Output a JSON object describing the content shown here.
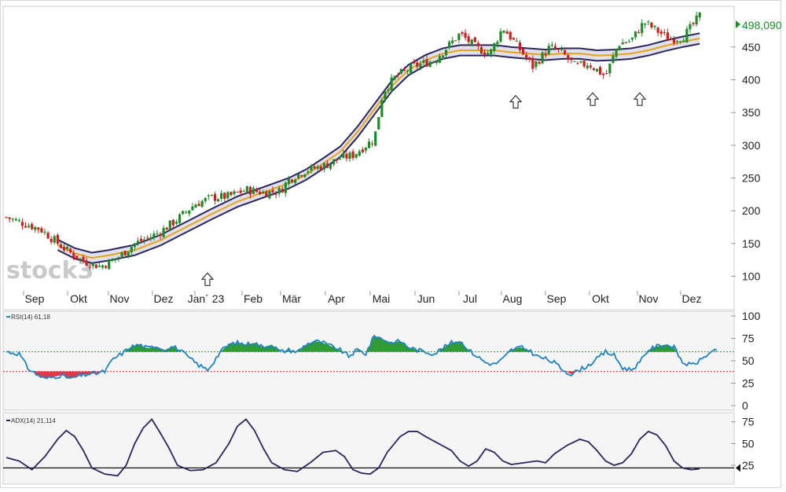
{
  "watermark": "stock3",
  "chart_data": [
    {
      "type": "candlestick",
      "x_labels": [
        "Sep",
        "Okt",
        "Nov",
        "Dez",
        "Jan´ 23",
        "Feb",
        "Mär",
        "Apr",
        "Mai",
        "Jun",
        "Jul",
        "Aug",
        "Sep",
        "Okt",
        "Nov",
        "Dez"
      ],
      "y_ticks": [
        100,
        150,
        200,
        250,
        300,
        350,
        400,
        450
      ],
      "ylim": [
        85,
        505
      ],
      "last_price": "498,090",
      "colors": {
        "up": "#1e8a2a",
        "down": "#cc2020",
        "band_line": "#2a2660",
        "mid_line": "#e8a21a",
        "band_fill": "#dcdce8",
        "last_price": "#1e8a2a"
      },
      "arrow_markers": [
        "Jan´ 23",
        "Aug",
        "Okt",
        "Nov"
      ],
      "close_path": [
        [
          0,
          190
        ],
        [
          8,
          172
        ],
        [
          14,
          140
        ],
        [
          18,
          123
        ],
        [
          22,
          115
        ],
        [
          26,
          128
        ],
        [
          30,
          150
        ],
        [
          33,
          158
        ],
        [
          36,
          168
        ],
        [
          40,
          187
        ],
        [
          44,
          210
        ],
        [
          48,
          220
        ],
        [
          52,
          222
        ],
        [
          56,
          232
        ],
        [
          60,
          228
        ],
        [
          64,
          230
        ],
        [
          66,
          248
        ],
        [
          70,
          262
        ],
        [
          74,
          268
        ],
        [
          78,
          280
        ],
        [
          81,
          285
        ],
        [
          84,
          300
        ],
        [
          86,
          310
        ],
        [
          88,
          382
        ],
        [
          91,
          405
        ],
        [
          95,
          420
        ],
        [
          100,
          430
        ],
        [
          103,
          450
        ],
        [
          106,
          470
        ],
        [
          110,
          448
        ],
        [
          113,
          440
        ],
        [
          116,
          480
        ],
        [
          119,
          455
        ],
        [
          123,
          420
        ],
        [
          127,
          450
        ],
        [
          130,
          440
        ],
        [
          133,
          420
        ],
        [
          136,
          425
        ],
        [
          140,
          405
        ],
        [
          143,
          455
        ],
        [
          146,
          460
        ],
        [
          149,
          488
        ],
        [
          152,
          475
        ],
        [
          155,
          462
        ],
        [
          158,
          465
        ],
        [
          160,
          480
        ],
        [
          162,
          498
        ]
      ],
      "band_path": [
        [
          12,
          148
        ],
        [
          16,
          135
        ],
        [
          20,
          128
        ],
        [
          24,
          132
        ],
        [
          30,
          140
        ],
        [
          36,
          155
        ],
        [
          42,
          175
        ],
        [
          48,
          195
        ],
        [
          54,
          214
        ],
        [
          60,
          228
        ],
        [
          66,
          242
        ],
        [
          70,
          255
        ],
        [
          74,
          272
        ],
        [
          78,
          290
        ],
        [
          82,
          320
        ],
        [
          86,
          355
        ],
        [
          90,
          390
        ],
        [
          94,
          415
        ],
        [
          98,
          430
        ],
        [
          102,
          440
        ],
        [
          106,
          445
        ],
        [
          110,
          445
        ],
        [
          114,
          445
        ],
        [
          118,
          442
        ],
        [
          122,
          440
        ],
        [
          126,
          438
        ],
        [
          130,
          440
        ],
        [
          134,
          440
        ],
        [
          138,
          437
        ],
        [
          142,
          438
        ],
        [
          146,
          440
        ],
        [
          150,
          445
        ],
        [
          154,
          452
        ],
        [
          158,
          458
        ],
        [
          162,
          463
        ]
      ],
      "band_half_width": 8
    },
    {
      "type": "line",
      "indicator": "RSI",
      "label": "RSI(14)  61,18",
      "y_ticks": [
        0,
        25,
        50,
        75,
        100
      ],
      "ylim": [
        0,
        100
      ],
      "upper_threshold": 60,
      "lower_threshold": 38,
      "colors": {
        "line": "#1f83c4",
        "over": "#2e9b33",
        "under": "#e03a4a",
        "upper_line": "#2e9b33",
        "lower_line": "#cc3333"
      },
      "values": [
        [
          0,
          60
        ],
        [
          3,
          58
        ],
        [
          5,
          42
        ],
        [
          7,
          35
        ],
        [
          9,
          30
        ],
        [
          11,
          32
        ],
        [
          13,
          34
        ],
        [
          15,
          30
        ],
        [
          17,
          33
        ],
        [
          19,
          35
        ],
        [
          21,
          36
        ],
        [
          23,
          38
        ],
        [
          25,
          52
        ],
        [
          27,
          58
        ],
        [
          29,
          65
        ],
        [
          31,
          68
        ],
        [
          33,
          64
        ],
        [
          35,
          66
        ],
        [
          37,
          62
        ],
        [
          39,
          66
        ],
        [
          41,
          60
        ],
        [
          43,
          52
        ],
        [
          45,
          45
        ],
        [
          47,
          40
        ],
        [
          48,
          46
        ],
        [
          50,
          60
        ],
        [
          52,
          68
        ],
        [
          54,
          70
        ],
        [
          56,
          68
        ],
        [
          58,
          70
        ],
        [
          60,
          65
        ],
        [
          62,
          68
        ],
        [
          64,
          60
        ],
        [
          66,
          62
        ],
        [
          68,
          60
        ],
        [
          70,
          68
        ],
        [
          72,
          72
        ],
        [
          74,
          70
        ],
        [
          76,
          66
        ],
        [
          78,
          62
        ],
        [
          80,
          55
        ],
        [
          82,
          62
        ],
        [
          84,
          58
        ],
        [
          86,
          78
        ],
        [
          88,
          74
        ],
        [
          90,
          70
        ],
        [
          92,
          72
        ],
        [
          94,
          65
        ],
        [
          96,
          62
        ],
        [
          98,
          60
        ],
        [
          100,
          58
        ],
        [
          102,
          64
        ],
        [
          104,
          70
        ],
        [
          106,
          72
        ],
        [
          108,
          62
        ],
        [
          110,
          55
        ],
        [
          112,
          48
        ],
        [
          114,
          46
        ],
        [
          116,
          52
        ],
        [
          118,
          62
        ],
        [
          120,
          65
        ],
        [
          122,
          62
        ],
        [
          124,
          55
        ],
        [
          126,
          52
        ],
        [
          128,
          48
        ],
        [
          130,
          40
        ],
        [
          132,
          35
        ],
        [
          134,
          40
        ],
        [
          136,
          45
        ],
        [
          138,
          52
        ],
        [
          140,
          60
        ],
        [
          142,
          56
        ],
        [
          144,
          42
        ],
        [
          146,
          40
        ],
        [
          148,
          48
        ],
        [
          150,
          62
        ],
        [
          152,
          66
        ],
        [
          154,
          68
        ],
        [
          156,
          65
        ],
        [
          158,
          48
        ],
        [
          160,
          45
        ],
        [
          162,
          50
        ],
        [
          164,
          58
        ],
        [
          166,
          61
        ]
      ]
    },
    {
      "type": "line",
      "indicator": "ADX",
      "label": "ADX(14)  21,114",
      "y_ticks": [
        25,
        50,
        75
      ],
      "ylim": [
        7,
        82
      ],
      "reference_line": 22,
      "colors": {
        "line": "#2a2660",
        "reference": "#111111"
      },
      "values": [
        [
          0,
          34
        ],
        [
          3,
          30
        ],
        [
          6,
          20
        ],
        [
          9,
          35
        ],
        [
          12,
          55
        ],
        [
          14,
          65
        ],
        [
          16,
          58
        ],
        [
          18,
          42
        ],
        [
          20,
          22
        ],
        [
          23,
          15
        ],
        [
          26,
          13
        ],
        [
          28,
          25
        ],
        [
          30,
          50
        ],
        [
          32,
          68
        ],
        [
          34,
          78
        ],
        [
          36,
          62
        ],
        [
          38,
          45
        ],
        [
          40,
          25
        ],
        [
          43,
          19
        ],
        [
          46,
          20
        ],
        [
          49,
          28
        ],
        [
          52,
          50
        ],
        [
          54,
          70
        ],
        [
          56,
          78
        ],
        [
          58,
          65
        ],
        [
          60,
          45
        ],
        [
          62,
          28
        ],
        [
          65,
          20
        ],
        [
          68,
          18
        ],
        [
          71,
          28
        ],
        [
          74,
          40
        ],
        [
          77,
          42
        ],
        [
          79,
          35
        ],
        [
          81,
          20
        ],
        [
          83,
          16
        ],
        [
          85,
          15
        ],
        [
          87,
          22
        ],
        [
          89,
          40
        ],
        [
          92,
          58
        ],
        [
          94,
          64
        ],
        [
          96,
          64
        ],
        [
          98,
          58
        ],
        [
          101,
          50
        ],
        [
          104,
          42
        ],
        [
          106,
          30
        ],
        [
          108,
          24
        ],
        [
          110,
          30
        ],
        [
          112,
          44
        ],
        [
          114,
          40
        ],
        [
          116,
          30
        ],
        [
          118,
          26
        ],
        [
          121,
          28
        ],
        [
          124,
          30
        ],
        [
          126,
          28
        ],
        [
          128,
          38
        ],
        [
          131,
          48
        ],
        [
          134,
          55
        ],
        [
          136,
          52
        ],
        [
          138,
          42
        ],
        [
          140,
          30
        ],
        [
          142,
          25
        ],
        [
          144,
          28
        ],
        [
          146,
          38
        ],
        [
          148,
          55
        ],
        [
          150,
          64
        ],
        [
          152,
          60
        ],
        [
          154,
          48
        ],
        [
          156,
          30
        ],
        [
          158,
          22
        ],
        [
          160,
          20
        ],
        [
          162,
          21
        ]
      ]
    }
  ]
}
